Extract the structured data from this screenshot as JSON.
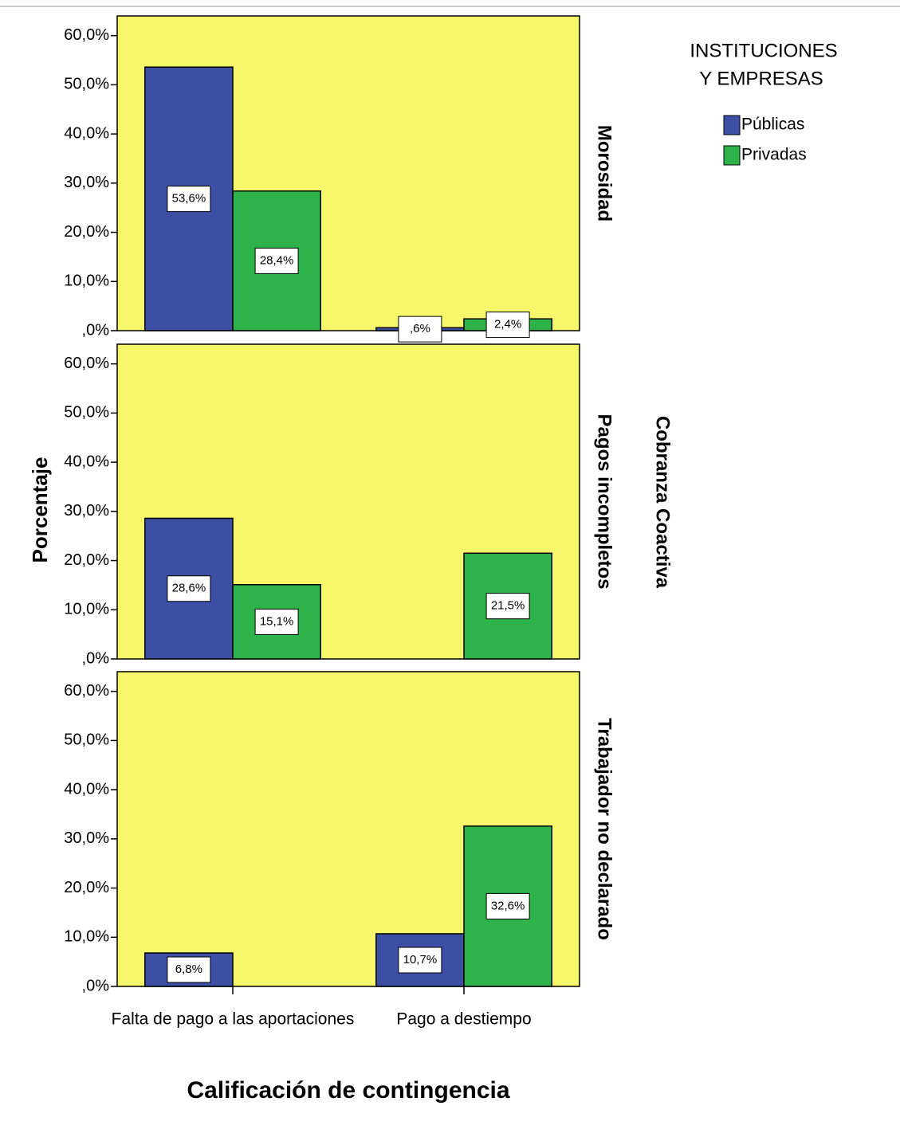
{
  "figure": {
    "y_label": "Porcentaje",
    "x_label": "Calificación de contingencia",
    "facet_label": "Cobranza Coactiva",
    "legend_title": [
      "INSTITUCIONES",
      "Y EMPRESAS"
    ]
  },
  "chart_data": [
    {
      "type": "bar",
      "panel_label": "Morosidad",
      "categories": [
        "Falta de pago a las aportaciones",
        "Pago a destiempo"
      ],
      "series": [
        {
          "name": "Públicas",
          "color": "#3d4ea5",
          "values": [
            53.6,
            0.6
          ],
          "value_labels": [
            "53,6%",
            ",6%"
          ]
        },
        {
          "name": "Privadas",
          "color": "#2db34a",
          "values": [
            28.4,
            2.4
          ],
          "value_labels": [
            "28,4%",
            "2,4%"
          ]
        }
      ],
      "ylim": [
        0,
        64
      ],
      "yticks": [
        {
          "value": 0,
          "label": ",0%"
        },
        {
          "value": 10,
          "label": "10,0%"
        },
        {
          "value": 20,
          "label": "20,0%"
        },
        {
          "value": 30,
          "label": "30,0%"
        },
        {
          "value": 40,
          "label": "40,0%"
        },
        {
          "value": 50,
          "label": "50,0%"
        },
        {
          "value": 60,
          "label": "60,0%"
        }
      ]
    },
    {
      "type": "bar",
      "panel_label": "Pagos incompletos",
      "categories": [
        "Falta de pago a las aportaciones",
        "Pago a destiempo"
      ],
      "series": [
        {
          "name": "Públicas",
          "color": "#3d4ea5",
          "values": [
            28.6,
            null
          ],
          "value_labels": [
            "28,6%",
            null
          ]
        },
        {
          "name": "Privadas",
          "color": "#2db34a",
          "values": [
            15.1,
            21.5
          ],
          "value_labels": [
            "15,1%",
            "21,5%"
          ]
        }
      ],
      "ylim": [
        0,
        64
      ],
      "yticks": [
        {
          "value": 0,
          "label": ",0%"
        },
        {
          "value": 10,
          "label": "10,0%"
        },
        {
          "value": 20,
          "label": "20,0%"
        },
        {
          "value": 30,
          "label": "30,0%"
        },
        {
          "value": 40,
          "label": "40,0%"
        },
        {
          "value": 50,
          "label": "50,0%"
        },
        {
          "value": 60,
          "label": "60,0%"
        }
      ]
    },
    {
      "type": "bar",
      "panel_label": "Trabajador no declarado",
      "categories": [
        "Falta de pago a las aportaciones",
        "Pago a destiempo"
      ],
      "series": [
        {
          "name": "Públicas",
          "color": "#3d4ea5",
          "values": [
            6.8,
            10.7
          ],
          "value_labels": [
            "6,8%",
            "10,7%"
          ]
        },
        {
          "name": "Privadas",
          "color": "#2db34a",
          "values": [
            null,
            32.6
          ],
          "value_labels": [
            null,
            "32,6%"
          ]
        }
      ],
      "ylim": [
        0,
        64
      ],
      "yticks": [
        {
          "value": 0,
          "label": ",0%"
        },
        {
          "value": 10,
          "label": "10,0%"
        },
        {
          "value": 20,
          "label": "20,0%"
        },
        {
          "value": 30,
          "label": "30,0%"
        },
        {
          "value": 40,
          "label": "40,0%"
        },
        {
          "value": 50,
          "label": "50,0%"
        },
        {
          "value": 60,
          "label": "60,0%"
        }
      ]
    }
  ]
}
